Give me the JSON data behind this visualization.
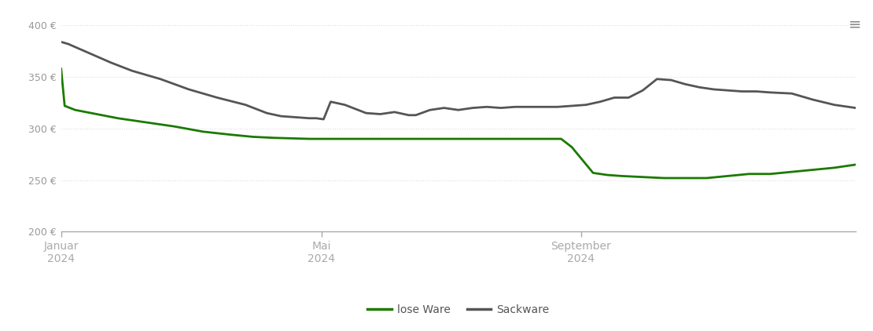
{
  "background_color": "#ffffff",
  "grid_color": "#dddddd",
  "yticks": [
    200,
    250,
    300,
    350,
    400
  ],
  "lose_ware_color": "#1a7a00",
  "sackware_color": "#555555",
  "line_width": 2.0,
  "lose_ware": {
    "x": [
      0,
      0.05,
      0.2,
      0.5,
      0.8,
      1.2,
      1.6,
      2.0,
      2.4,
      2.7,
      3.0,
      3.5,
      4.0,
      4.5,
      5.0,
      5.5,
      6.0,
      6.5,
      7.0,
      7.05,
      7.2,
      7.5,
      7.7,
      7.9,
      8.2,
      8.5,
      8.8,
      9.1,
      9.4,
      9.7,
      10.0,
      10.3,
      10.6,
      10.9,
      11.2
    ],
    "y": [
      358,
      322,
      318,
      314,
      310,
      306,
      302,
      297,
      294,
      292,
      291,
      290,
      290,
      290,
      290,
      290,
      290,
      290,
      290,
      290,
      282,
      257,
      255,
      254,
      253,
      252,
      252,
      252,
      254,
      256,
      256,
      258,
      260,
      262,
      265
    ]
  },
  "sackware": {
    "x": [
      0,
      0.1,
      0.2,
      0.4,
      0.7,
      1.0,
      1.4,
      1.8,
      2.2,
      2.6,
      2.9,
      3.1,
      3.3,
      3.5,
      3.6,
      3.7,
      3.8,
      4.0,
      4.3,
      4.5,
      4.7,
      4.9,
      5.0,
      5.2,
      5.4,
      5.6,
      5.8,
      6.0,
      6.2,
      6.4,
      6.6,
      6.8,
      7.0,
      7.2,
      7.4,
      7.6,
      7.8,
      8.0,
      8.2,
      8.4,
      8.6,
      8.8,
      9.0,
      9.2,
      9.4,
      9.6,
      9.8,
      10.0,
      10.3,
      10.6,
      10.9,
      11.2
    ],
    "y": [
      384,
      382,
      379,
      373,
      364,
      356,
      348,
      338,
      330,
      323,
      315,
      312,
      311,
      310,
      310,
      309,
      326,
      323,
      315,
      314,
      316,
      313,
      313,
      318,
      320,
      318,
      320,
      321,
      320,
      321,
      321,
      321,
      321,
      322,
      323,
      326,
      330,
      330,
      337,
      348,
      347,
      343,
      340,
      338,
      337,
      336,
      336,
      335,
      334,
      328,
      323,
      320
    ]
  },
  "xlim": [
    0,
    11.2
  ],
  "ylim": [
    200,
    415
  ],
  "xtick_positions": [
    0.0,
    3.67,
    7.33
  ],
  "xtick_labels": [
    "Januar\n2024",
    "Mai\n2024",
    "September\n2024"
  ],
  "legend_labels": [
    "lose Ware",
    "Sackware"
  ]
}
